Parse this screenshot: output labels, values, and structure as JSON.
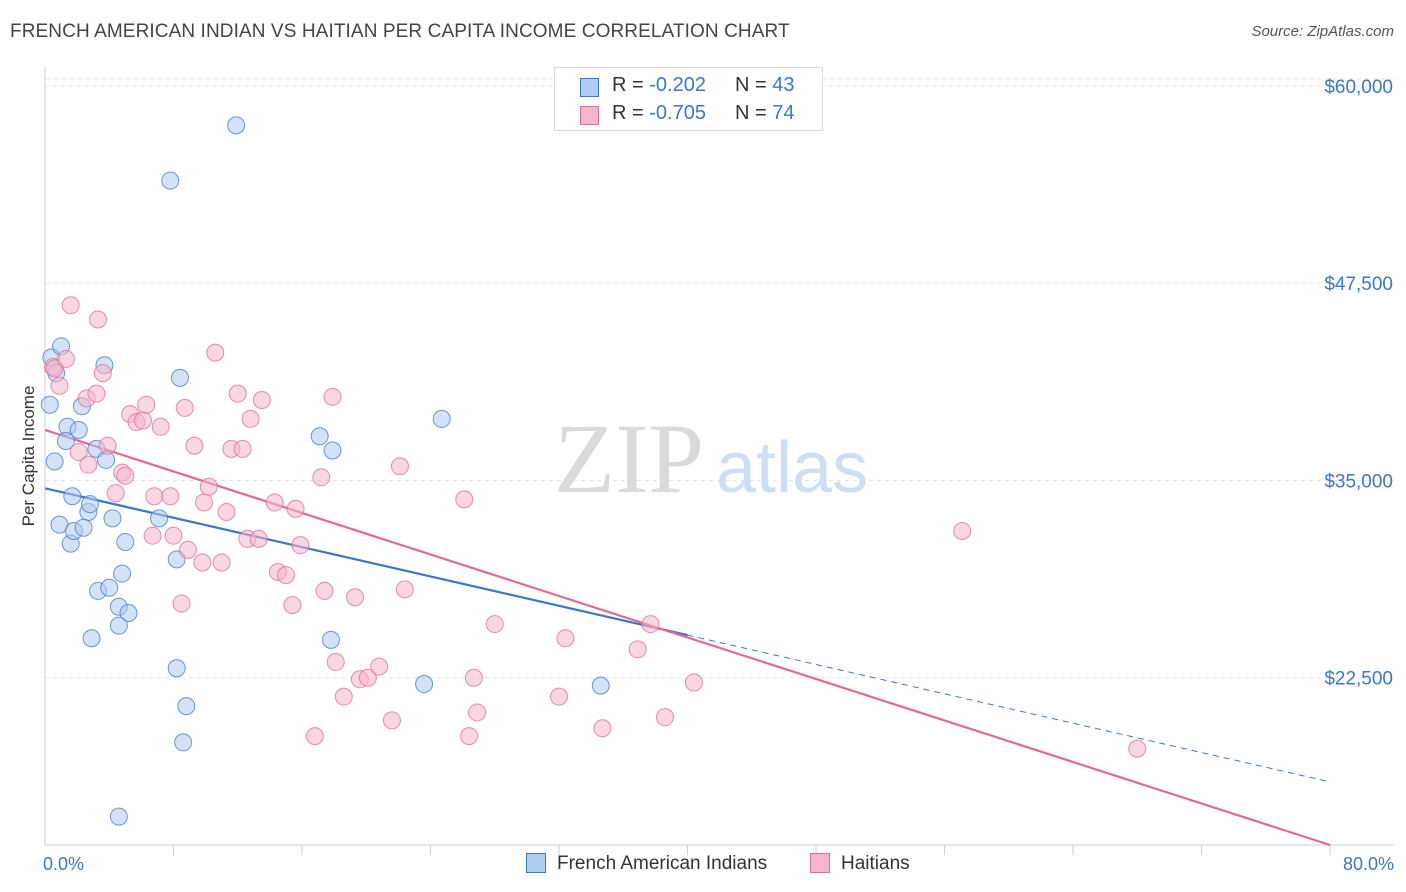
{
  "title": "FRENCH AMERICAN INDIAN VS HAITIAN PER CAPITA INCOME CORRELATION CHART",
  "source": "Source: ZipAtlas.com",
  "watermark": {
    "zip": "ZIP",
    "atlas": "atlas"
  },
  "legend": {
    "rows": [
      {
        "r_label": "R = ",
        "r_value": "-0.202",
        "n_label": "N = ",
        "n_value": "43"
      },
      {
        "r_label": "R = ",
        "r_value": "-0.705",
        "n_label": "N = ",
        "n_value": "74"
      }
    ]
  },
  "bottom_legend": {
    "series1": "French American Indians",
    "series2": "Haitians"
  },
  "chart_data": {
    "type": "scatter",
    "ylabel": "Per Capita Income",
    "xlabel": "",
    "x_tick_labels": [
      "0.0%",
      "80.0%"
    ],
    "y_tick_labels": [
      "$22,500",
      "$35,000",
      "$47,500",
      "$60,000"
    ],
    "y_ticks": [
      22500,
      35000,
      47500,
      60000
    ],
    "xlim": [
      0,
      80
    ],
    "ylim": [
      11900,
      61200
    ],
    "grid": true,
    "colors": {
      "blue": "#3b78c8",
      "blue_fill": "#aecbf0",
      "pink": "#e0689a",
      "pink_fill": "#f4b6cb"
    },
    "series": [
      {
        "name": "French American Indians",
        "color": "blue",
        "trend": {
          "x": [
            0,
            40
          ],
          "y": [
            34500,
            25200
          ],
          "dashed_to": {
            "x": [
              40,
              80
            ],
            "y": [
              25200,
              15900
            ]
          }
        },
        "points": [
          [
            0.4,
            42.8
          ],
          [
            0.6,
            36.2
          ],
          [
            0.3,
            39.8
          ],
          [
            0.7,
            41.8
          ],
          [
            1.0,
            43.5
          ],
          [
            1.4,
            38.4
          ],
          [
            1.3,
            37.5
          ],
          [
            0.9,
            32.2
          ],
          [
            1.6,
            31.0
          ],
          [
            1.8,
            31.8
          ],
          [
            1.7,
            34.0
          ],
          [
            2.1,
            38.2
          ],
          [
            2.3,
            39.7
          ],
          [
            2.7,
            33.0
          ],
          [
            2.4,
            32.0
          ],
          [
            2.8,
            33.5
          ],
          [
            3.2,
            37.0
          ],
          [
            3.7,
            42.3
          ],
          [
            3.8,
            36.3
          ],
          [
            4.2,
            32.6
          ],
          [
            3.3,
            28.0
          ],
          [
            4.0,
            28.2
          ],
          [
            4.8,
            29.1
          ],
          [
            4.6,
            27.0
          ],
          [
            5.2,
            26.6
          ],
          [
            5.0,
            31.1
          ],
          [
            4.6,
            25.8
          ],
          [
            2.9,
            25.0
          ],
          [
            7.1,
            32.6
          ],
          [
            8.2,
            30.0
          ],
          [
            8.4,
            41.5
          ],
          [
            8.8,
            20.7
          ],
          [
            8.6,
            18.4
          ],
          [
            8.2,
            23.1
          ],
          [
            7.8,
            54.0
          ],
          [
            11.9,
            57.5
          ],
          [
            17.1,
            37.8
          ],
          [
            17.9,
            36.9
          ],
          [
            17.8,
            24.9
          ],
          [
            23.6,
            22.1
          ],
          [
            24.7,
            38.9
          ],
          [
            34.6,
            22.0
          ],
          [
            4.6,
            13.7
          ]
        ]
      },
      {
        "name": "Haitians",
        "color": "pink",
        "trend": {
          "x": [
            0,
            80
          ],
          "y": [
            38200,
            11900
          ]
        },
        "points": [
          [
            0.5,
            42.2
          ],
          [
            0.6,
            42.1
          ],
          [
            0.9,
            41.0
          ],
          [
            1.3,
            42.7
          ],
          [
            1.6,
            46.1
          ],
          [
            2.1,
            36.8
          ],
          [
            2.6,
            40.2
          ],
          [
            2.7,
            36.0
          ],
          [
            3.2,
            40.5
          ],
          [
            3.3,
            45.2
          ],
          [
            3.6,
            41.8
          ],
          [
            3.9,
            37.2
          ],
          [
            4.4,
            34.2
          ],
          [
            4.8,
            35.5
          ],
          [
            5.0,
            35.3
          ],
          [
            5.3,
            39.2
          ],
          [
            5.7,
            38.7
          ],
          [
            6.1,
            38.8
          ],
          [
            6.3,
            39.8
          ],
          [
            6.7,
            31.5
          ],
          [
            6.8,
            34.0
          ],
          [
            7.2,
            38.4
          ],
          [
            7.8,
            34.0
          ],
          [
            8.0,
            31.5
          ],
          [
            8.5,
            27.2
          ],
          [
            8.7,
            39.6
          ],
          [
            8.9,
            30.6
          ],
          [
            9.3,
            37.2
          ],
          [
            9.8,
            29.8
          ],
          [
            9.9,
            33.6
          ],
          [
            10.2,
            34.6
          ],
          [
            10.6,
            43.1
          ],
          [
            11.0,
            29.8
          ],
          [
            11.3,
            33.0
          ],
          [
            11.6,
            37.0
          ],
          [
            12.0,
            40.5
          ],
          [
            12.3,
            37.0
          ],
          [
            12.6,
            31.3
          ],
          [
            12.8,
            38.9
          ],
          [
            13.5,
            40.1
          ],
          [
            13.3,
            31.3
          ],
          [
            14.3,
            33.6
          ],
          [
            14.5,
            29.2
          ],
          [
            15.0,
            29.0
          ],
          [
            15.4,
            27.1
          ],
          [
            15.6,
            33.2
          ],
          [
            15.9,
            30.9
          ],
          [
            16.8,
            18.8
          ],
          [
            17.2,
            35.2
          ],
          [
            17.4,
            28.0
          ],
          [
            17.9,
            40.3
          ],
          [
            18.1,
            23.5
          ],
          [
            18.6,
            21.3
          ],
          [
            19.3,
            27.6
          ],
          [
            19.6,
            22.4
          ],
          [
            20.1,
            22.5
          ],
          [
            20.8,
            23.2
          ],
          [
            21.6,
            19.8
          ],
          [
            22.1,
            35.9
          ],
          [
            22.4,
            28.1
          ],
          [
            26.1,
            33.8
          ],
          [
            26.4,
            18.8
          ],
          [
            26.7,
            22.5
          ],
          [
            26.9,
            20.3
          ],
          [
            28.0,
            25.9
          ],
          [
            32.0,
            21.3
          ],
          [
            32.4,
            25.0
          ],
          [
            34.7,
            19.3
          ],
          [
            36.9,
            24.3
          ],
          [
            37.7,
            25.9
          ],
          [
            38.6,
            20.0
          ],
          [
            40.4,
            22.2
          ],
          [
            57.1,
            31.8
          ],
          [
            68.0,
            18.0
          ]
        ]
      }
    ]
  }
}
